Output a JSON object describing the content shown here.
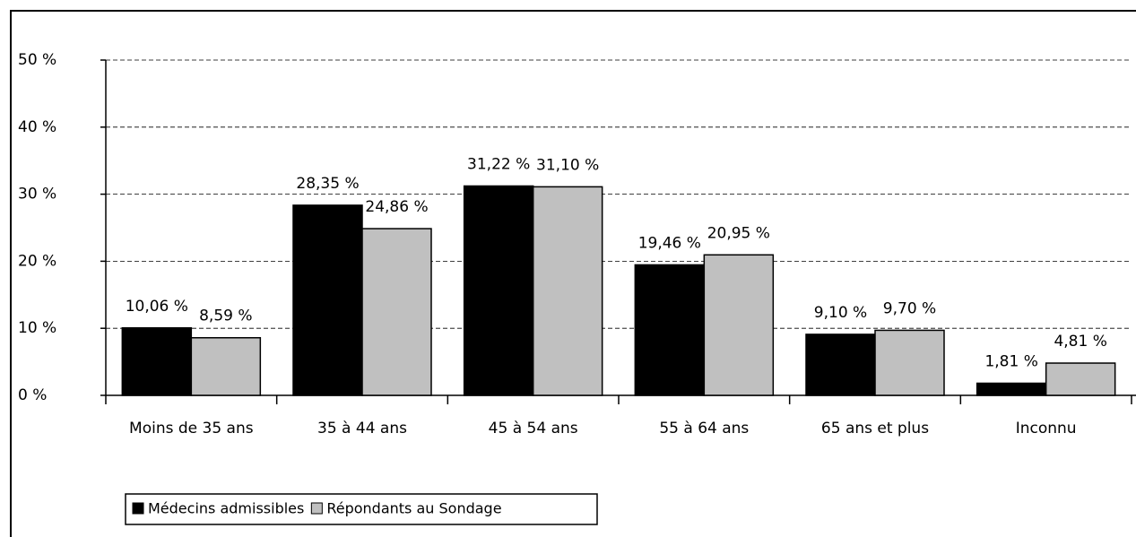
{
  "chart_data": {
    "type": "bar",
    "categories": [
      "Moins de 35 ans",
      "35 à 44 ans",
      "45 à 54 ans",
      "55 à 64 ans",
      "65 ans et plus",
      "Inconnu"
    ],
    "series": [
      {
        "name": "Médecins admissibles",
        "color": "#000000",
        "values": [
          10.06,
          28.35,
          31.22,
          19.46,
          9.1,
          1.81
        ],
        "value_labels": [
          "10,06 %",
          "28,35 %",
          "31,22 %",
          "19,46 %",
          "9,10 %",
          "1,81 %"
        ]
      },
      {
        "name": "Répondants au Sondage",
        "color": "#c0c0c0",
        "values": [
          8.59,
          24.86,
          31.1,
          20.95,
          9.7,
          4.81
        ],
        "value_labels": [
          "8,59 %",
          "24,86 %",
          "31,10 %",
          "20,95 %",
          "9,70 %",
          "4,81 %"
        ]
      }
    ],
    "ylim": [
      0,
      50
    ],
    "yticks": [
      {
        "value": 0,
        "label": "0 %"
      },
      {
        "value": 10,
        "label": "10 %"
      },
      {
        "value": 20,
        "label": "20 %"
      },
      {
        "value": 30,
        "label": "30 %"
      },
      {
        "value": 40,
        "label": "40 %"
      },
      {
        "value": 50,
        "label": "50 %"
      }
    ],
    "grid": true
  }
}
